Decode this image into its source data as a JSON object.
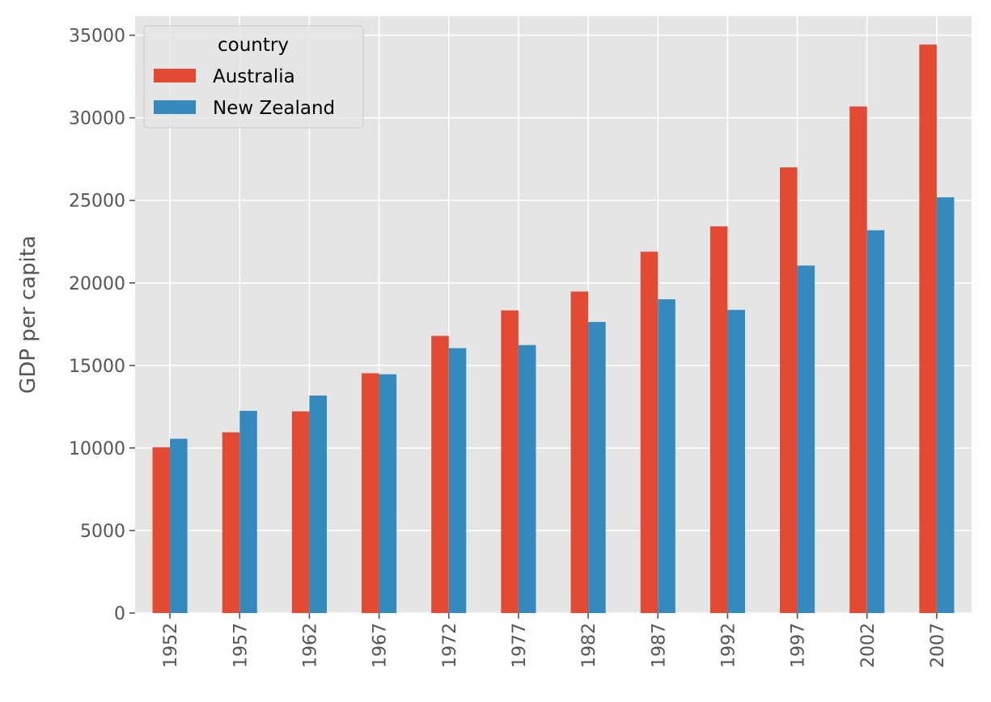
{
  "chart_data": {
    "type": "bar",
    "title": "",
    "xlabel": "",
    "ylabel": "GDP per capita",
    "ylim": [
      0,
      36157
    ],
    "yticks": [
      0,
      5000,
      10000,
      15000,
      20000,
      25000,
      30000,
      35000
    ],
    "grid": true,
    "legend": {
      "title": "country",
      "placement": "top-left"
    },
    "categories": [
      "1952",
      "1957",
      "1962",
      "1967",
      "1972",
      "1977",
      "1982",
      "1987",
      "1992",
      "1997",
      "2002",
      "2007"
    ],
    "series": [
      {
        "name": "Australia",
        "color": "#E24A33",
        "values": [
          10039.6,
          10949.65,
          12217.23,
          14526.12,
          16788.63,
          18334.2,
          19477.01,
          21888.89,
          23424.77,
          26997.94,
          30687.75,
          34435.37
        ]
      },
      {
        "name": "New Zealand",
        "color": "#348ABD",
        "values": [
          10556.58,
          12247.4,
          13175.68,
          14463.92,
          16046.04,
          16233.72,
          17632.41,
          19007.19,
          18363.32,
          21050.41,
          23189.8,
          25185.01
        ]
      }
    ]
  }
}
